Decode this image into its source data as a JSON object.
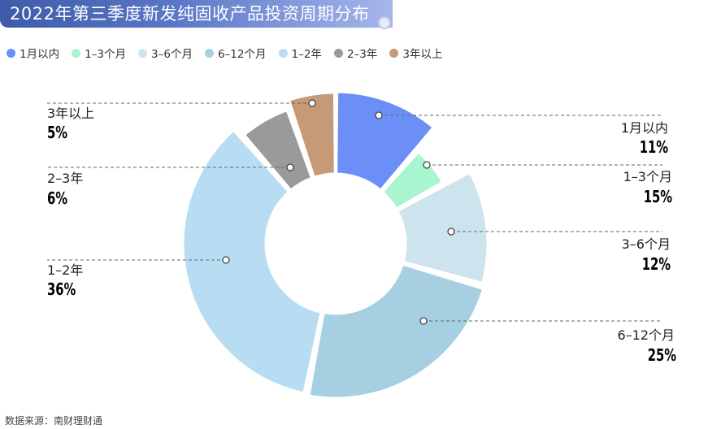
{
  "header": {
    "title": "2022年第三季度新发纯固收产品投资周期分布"
  },
  "legend": [
    {
      "label": "1月以内",
      "color": "#6b8ef7"
    },
    {
      "label": "1–3个月",
      "color": "#a8f5d0"
    },
    {
      "label": "3–6个月",
      "color": "#cde3ee"
    },
    {
      "label": "6–12个月",
      "color": "#a6cfe2"
    },
    {
      "label": "1–2年",
      "color": "#b8ddf3"
    },
    {
      "label": "2–3年",
      "color": "#9a9a9a"
    },
    {
      "label": "3年以上",
      "color": "#c79a77"
    }
  ],
  "labels": {
    "l1": {
      "name": "1月以内",
      "pct": "11%"
    },
    "l2": {
      "name": "1–3个月",
      "pct": "15%"
    },
    "l3": {
      "name": "3–6个月",
      "pct": "12%"
    },
    "l4": {
      "name": "6–12个月",
      "pct": "25%"
    },
    "l5": {
      "name": "1–2年",
      "pct": "36%"
    },
    "l6": {
      "name": "2–3年",
      "pct": "6%"
    },
    "l7": {
      "name": "3年以上",
      "pct": "5%"
    }
  },
  "footer": {
    "source": "数据来源：南财理财通"
  },
  "chart_data": {
    "type": "pie",
    "subtype": "donut-rose",
    "title": "2022年第三季度新发纯固收产品投资周期分布",
    "categories": [
      "1月以内",
      "1–3个月",
      "3–6个月",
      "6–12个月",
      "1–2年",
      "2–3年",
      "3年以上"
    ],
    "values": [
      11,
      15,
      12,
      25,
      36,
      6,
      5
    ],
    "unit": "%",
    "colors": [
      "#6b8ef7",
      "#a8f5d0",
      "#cde3ee",
      "#a6cfe2",
      "#b8ddf3",
      "#9a9a9a",
      "#c79a77"
    ],
    "legend_position": "top",
    "source": "数据来源：南财理财通"
  }
}
